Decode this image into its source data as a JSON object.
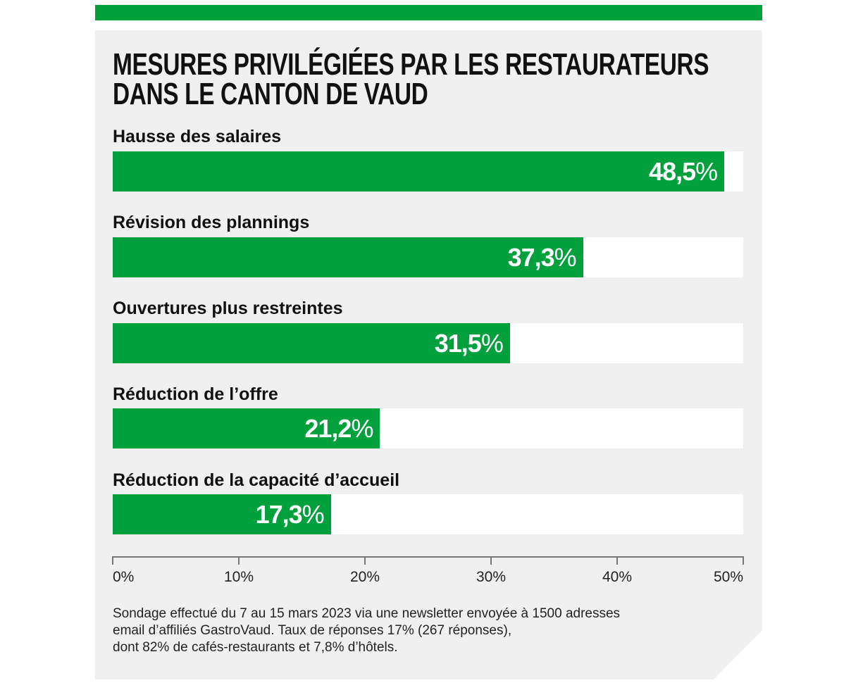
{
  "chart_data": {
    "type": "bar",
    "orientation": "horizontal",
    "title": [
      "MESURES PRIVILÉGIÉES PAR LES RESTAURATEURS",
      "DANS LE CANTON DE VAUD"
    ],
    "categories": [
      "Hausse des salaires",
      "Révision des plannings",
      "Ouvertures plus restreintes",
      "Réduction de l’offre",
      "Réduction de la capacité d’accueil"
    ],
    "values": [
      48.5,
      37.3,
      31.5,
      21.2,
      17.3
    ],
    "value_labels": [
      "48,5",
      "37,3",
      "31,5",
      "21,2",
      "17,3"
    ],
    "value_suffix": "%",
    "xlim": [
      0,
      50
    ],
    "xticks": [
      "0%",
      "10%",
      "20%",
      "30%",
      "40%",
      "50%"
    ],
    "xlabel": "",
    "ylabel": "",
    "grid": false,
    "bar_color": "#00a03c"
  },
  "footnote": [
    "Sondage effectué du 7 au 15 mars 2023 via une newsletter envoyée à 1500 adresses",
    "email d’affiliés GastroVaud. Taux de réponses 17% (267 réponses),",
    "dont 82% de cafés-restaurants et 7,8% d’hôtels."
  ]
}
